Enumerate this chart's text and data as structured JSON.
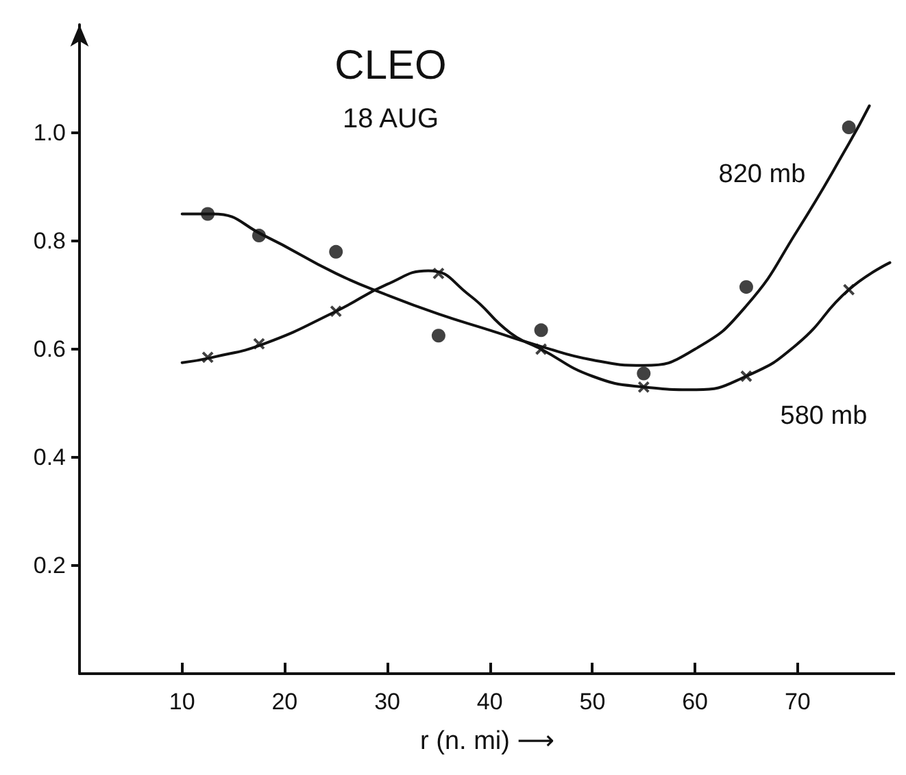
{
  "chart_data": {
    "type": "line",
    "title": "CLEO",
    "subtitle": "18 AUG",
    "xlabel": "r (n. mi) ⟶",
    "xlim": [
      0,
      79.5
    ],
    "ylim": [
      0,
      1.2
    ],
    "xticks": [
      10,
      20,
      30,
      40,
      50,
      60,
      70
    ],
    "yticks": [
      0.2,
      0.4,
      0.6,
      0.8,
      {
        "value": 1.0,
        "label": "1.0"
      }
    ],
    "grid": false,
    "legend": false,
    "series": [
      {
        "name": "820 mb",
        "marker": "none",
        "color": "#111111",
        "x": [
          10,
          13,
          18,
          25,
          30,
          35,
          40,
          45,
          50,
          55,
          60,
          65,
          70,
          75,
          77
        ],
        "values": [
          0.85,
          0.85,
          0.81,
          0.74,
          0.7,
          0.665,
          0.635,
          0.605,
          0.58,
          0.57,
          0.6,
          0.68,
          0.82,
          0.98,
          1.05
        ]
      },
      {
        "name": "580 mb",
        "marker": "none",
        "color": "#111111",
        "x": [
          10,
          13,
          18,
          25,
          30,
          34,
          38,
          42,
          45,
          50,
          55,
          60,
          65,
          70,
          75,
          79
        ],
        "values": [
          0.575,
          0.585,
          0.61,
          0.67,
          0.72,
          0.745,
          0.7,
          0.63,
          0.6,
          0.55,
          0.53,
          0.525,
          0.55,
          0.61,
          0.71,
          0.76
        ]
      },
      {
        "type": "scatter",
        "marker": "circle",
        "color": "#111111",
        "x": [
          12.5,
          17.5,
          25,
          35,
          45,
          55,
          65,
          75
        ],
        "values": [
          0.85,
          0.81,
          0.78,
          0.625,
          0.635,
          0.555,
          0.715,
          1.01
        ]
      },
      {
        "type": "scatter",
        "marker": "cross",
        "color": "#111111",
        "x": [
          12.5,
          17.5,
          25,
          35,
          45,
          55,
          65,
          75
        ],
        "values": [
          0.585,
          0.61,
          0.67,
          0.74,
          0.6,
          0.53,
          0.55,
          0.71
        ]
      }
    ]
  }
}
